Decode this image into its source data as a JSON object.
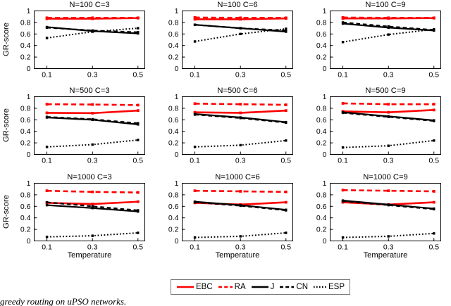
{
  "figure": {
    "background": "#ffffff",
    "y_label": "GR-score",
    "x_label": "Temperature",
    "x_ticks": [
      "0.1",
      "0.3",
      "0.5"
    ],
    "y_ticks": [
      "0",
      "0.2",
      "0.4",
      "0.6",
      "0.8",
      "1"
    ],
    "ylim": [
      0,
      1
    ],
    "accent_red": "#ff0000",
    "line_black": "#000000",
    "legend": [
      {
        "label": "EBC",
        "color": "#ff0000",
        "style": "solid"
      },
      {
        "label": "RA",
        "color": "#ff0000",
        "style": "dashed"
      },
      {
        "label": "J",
        "color": "#000000",
        "style": "solid"
      },
      {
        "label": "CN",
        "color": "#000000",
        "style": "dashed"
      },
      {
        "label": "ESP",
        "color": "#000000",
        "style": "dotted"
      }
    ],
    "caption_fragment": "greedy routing on uPSO networks."
  },
  "chart_data": [
    {
      "type": "line",
      "title": "N=100 C=3",
      "x": [
        0.1,
        0.3,
        0.5
      ],
      "ylim": [
        0,
        1
      ],
      "xlabel": "Temperature",
      "ylabel": "GR-score",
      "series": [
        {
          "name": "EBC",
          "color": "#ff0000",
          "style": "solid",
          "values": [
            0.865,
            0.865,
            0.875
          ]
        },
        {
          "name": "RA",
          "color": "#ff0000",
          "style": "dashed",
          "values": [
            0.88,
            0.88,
            0.88
          ]
        },
        {
          "name": "J",
          "color": "#000000",
          "style": "solid",
          "values": [
            0.72,
            0.65,
            0.61
          ]
        },
        {
          "name": "CN",
          "color": "#000000",
          "style": "dashed",
          "values": [
            0.71,
            0.66,
            0.63
          ]
        },
        {
          "name": "ESP",
          "color": "#000000",
          "style": "dotted",
          "values": [
            0.53,
            0.64,
            0.7
          ]
        }
      ]
    },
    {
      "type": "line",
      "title": "N=100 C=6",
      "x": [
        0.1,
        0.3,
        0.5
      ],
      "ylim": [
        0,
        1
      ],
      "xlabel": "Temperature",
      "ylabel": "GR-score",
      "series": [
        {
          "name": "EBC",
          "color": "#ff0000",
          "style": "solid",
          "values": [
            0.855,
            0.855,
            0.87
          ]
        },
        {
          "name": "RA",
          "color": "#ff0000",
          "style": "dashed",
          "values": [
            0.885,
            0.88,
            0.88
          ]
        },
        {
          "name": "J",
          "color": "#000000",
          "style": "solid",
          "values": [
            0.76,
            0.7,
            0.64
          ]
        },
        {
          "name": "CN",
          "color": "#000000",
          "style": "dashed",
          "values": [
            0.76,
            0.7,
            0.66
          ]
        },
        {
          "name": "ESP",
          "color": "#000000",
          "style": "dotted",
          "values": [
            0.47,
            0.6,
            0.69
          ]
        }
      ]
    },
    {
      "type": "line",
      "title": "N=100 C=9",
      "x": [
        0.1,
        0.3,
        0.5
      ],
      "ylim": [
        0,
        1
      ],
      "xlabel": "Temperature",
      "ylabel": "GR-score",
      "series": [
        {
          "name": "EBC",
          "color": "#ff0000",
          "style": "solid",
          "values": [
            0.87,
            0.87,
            0.875
          ]
        },
        {
          "name": "RA",
          "color": "#ff0000",
          "style": "dashed",
          "values": [
            0.885,
            0.88,
            0.88
          ]
        },
        {
          "name": "J",
          "color": "#000000",
          "style": "solid",
          "values": [
            0.78,
            0.71,
            0.66
          ]
        },
        {
          "name": "CN",
          "color": "#000000",
          "style": "dashed",
          "values": [
            0.8,
            0.73,
            0.67
          ]
        },
        {
          "name": "ESP",
          "color": "#000000",
          "style": "dotted",
          "values": [
            0.46,
            0.59,
            0.68
          ]
        }
      ]
    },
    {
      "type": "line",
      "title": "N=500 C=3",
      "x": [
        0.1,
        0.3,
        0.5
      ],
      "ylim": [
        0,
        1
      ],
      "xlabel": "Temperature",
      "ylabel": "GR-score",
      "series": [
        {
          "name": "EBC",
          "color": "#ff0000",
          "style": "solid",
          "values": [
            0.72,
            0.715,
            0.76
          ]
        },
        {
          "name": "RA",
          "color": "#ff0000",
          "style": "dashed",
          "values": [
            0.87,
            0.865,
            0.855
          ]
        },
        {
          "name": "J",
          "color": "#000000",
          "style": "solid",
          "values": [
            0.64,
            0.6,
            0.52
          ]
        },
        {
          "name": "CN",
          "color": "#000000",
          "style": "dashed",
          "values": [
            0.65,
            0.61,
            0.54
          ]
        },
        {
          "name": "ESP",
          "color": "#000000",
          "style": "dotted",
          "values": [
            0.13,
            0.17,
            0.25
          ]
        }
      ]
    },
    {
      "type": "line",
      "title": "N=500 C=6",
      "x": [
        0.1,
        0.3,
        0.5
      ],
      "ylim": [
        0,
        1
      ],
      "xlabel": "Temperature",
      "ylabel": "GR-score",
      "series": [
        {
          "name": "EBC",
          "color": "#ff0000",
          "style": "solid",
          "values": [
            0.73,
            0.72,
            0.76
          ]
        },
        {
          "name": "RA",
          "color": "#ff0000",
          "style": "dashed",
          "values": [
            0.88,
            0.87,
            0.86
          ]
        },
        {
          "name": "J",
          "color": "#000000",
          "style": "solid",
          "values": [
            0.7,
            0.64,
            0.56
          ]
        },
        {
          "name": "CN",
          "color": "#000000",
          "style": "dashed",
          "values": [
            0.69,
            0.63,
            0.55
          ]
        },
        {
          "name": "ESP",
          "color": "#000000",
          "style": "dotted",
          "values": [
            0.13,
            0.16,
            0.24
          ]
        }
      ]
    },
    {
      "type": "line",
      "title": "N=500 C=9",
      "x": [
        0.1,
        0.3,
        0.5
      ],
      "ylim": [
        0,
        1
      ],
      "xlabel": "Temperature",
      "ylabel": "GR-score",
      "series": [
        {
          "name": "EBC",
          "color": "#ff0000",
          "style": "solid",
          "values": [
            0.745,
            0.73,
            0.77
          ]
        },
        {
          "name": "RA",
          "color": "#ff0000",
          "style": "dashed",
          "values": [
            0.885,
            0.87,
            0.87
          ]
        },
        {
          "name": "J",
          "color": "#000000",
          "style": "solid",
          "values": [
            0.73,
            0.66,
            0.59
          ]
        },
        {
          "name": "CN",
          "color": "#000000",
          "style": "dashed",
          "values": [
            0.72,
            0.65,
            0.58
          ]
        },
        {
          "name": "ESP",
          "color": "#000000",
          "style": "dotted",
          "values": [
            0.12,
            0.15,
            0.24
          ]
        }
      ]
    },
    {
      "type": "line",
      "title": "N=1000 C=3",
      "x": [
        0.1,
        0.3,
        0.5
      ],
      "ylim": [
        0,
        1
      ],
      "xlabel": "Temperature",
      "ylabel": "GR-score",
      "series": [
        {
          "name": "EBC",
          "color": "#ff0000",
          "style": "solid",
          "values": [
            0.66,
            0.64,
            0.68
          ]
        },
        {
          "name": "RA",
          "color": "#ff0000",
          "style": "dashed",
          "values": [
            0.87,
            0.85,
            0.84
          ]
        },
        {
          "name": "J",
          "color": "#000000",
          "style": "solid",
          "values": [
            0.62,
            0.57,
            0.51
          ]
        },
        {
          "name": "CN",
          "color": "#000000",
          "style": "dashed",
          "values": [
            0.67,
            0.6,
            0.53
          ]
        },
        {
          "name": "ESP",
          "color": "#000000",
          "style": "dotted",
          "values": [
            0.07,
            0.09,
            0.14
          ]
        }
      ]
    },
    {
      "type": "line",
      "title": "N=1000 C=6",
      "x": [
        0.1,
        0.3,
        0.5
      ],
      "ylim": [
        0,
        1
      ],
      "xlabel": "Temperature",
      "ylabel": "GR-score",
      "series": [
        {
          "name": "EBC",
          "color": "#ff0000",
          "style": "solid",
          "values": [
            0.66,
            0.63,
            0.67
          ]
        },
        {
          "name": "RA",
          "color": "#ff0000",
          "style": "dashed",
          "values": [
            0.87,
            0.86,
            0.85
          ]
        },
        {
          "name": "J",
          "color": "#000000",
          "style": "solid",
          "values": [
            0.68,
            0.62,
            0.54
          ]
        },
        {
          "name": "CN",
          "color": "#000000",
          "style": "dashed",
          "values": [
            0.67,
            0.61,
            0.53
          ]
        },
        {
          "name": "ESP",
          "color": "#000000",
          "style": "dotted",
          "values": [
            0.06,
            0.08,
            0.14
          ]
        }
      ]
    },
    {
      "type": "line",
      "title": "N=1000 C=9",
      "x": [
        0.1,
        0.3,
        0.5
      ],
      "ylim": [
        0,
        1
      ],
      "xlabel": "Temperature",
      "ylabel": "GR-score",
      "series": [
        {
          "name": "EBC",
          "color": "#ff0000",
          "style": "solid",
          "values": [
            0.67,
            0.63,
            0.67
          ]
        },
        {
          "name": "RA",
          "color": "#ff0000",
          "style": "dashed",
          "values": [
            0.88,
            0.87,
            0.86
          ]
        },
        {
          "name": "J",
          "color": "#000000",
          "style": "solid",
          "values": [
            0.7,
            0.63,
            0.56
          ]
        },
        {
          "name": "CN",
          "color": "#000000",
          "style": "dashed",
          "values": [
            0.69,
            0.62,
            0.55
          ]
        },
        {
          "name": "ESP",
          "color": "#000000",
          "style": "dotted",
          "values": [
            0.06,
            0.08,
            0.13
          ]
        }
      ]
    }
  ]
}
